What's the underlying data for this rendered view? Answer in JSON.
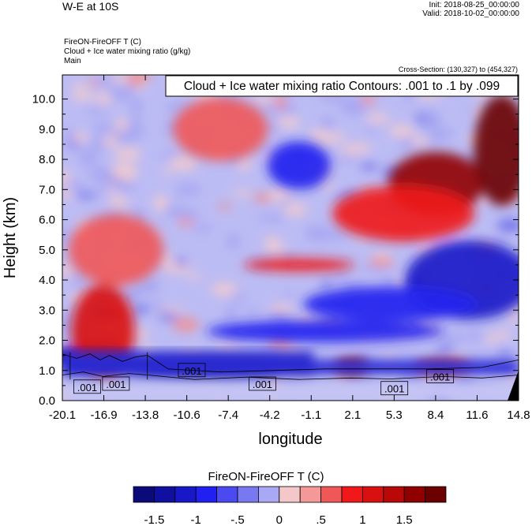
{
  "header": {
    "title": "W-E at 10S",
    "init": "Init: 2018-08-25_00:00:00",
    "valid": "Valid: 2018-10-02_00:00:00",
    "fill_label": "FireON-FireOFF T   (C)",
    "contour_label": "Cloud + Ice water mixing ratio   (g/kg)",
    "domain_label": "Main",
    "cross_section": "Cross-Section: (130,327) to (454,327)"
  },
  "chart_data": {
    "type": "heatmap",
    "xlabel": "longitude",
    "ylabel": "Height (km)",
    "x_ticks": [
      "-20.1",
      "-16.9",
      "-13.8",
      "-10.6",
      "-7.4",
      "-4.2",
      "-1.1",
      "2.1",
      "5.3",
      "8.4",
      "11.6",
      "14.8"
    ],
    "y_ticks": [
      "0.0",
      "1.0",
      "2.0",
      "3.0",
      "4.0",
      "5.0",
      "6.0",
      "7.0",
      "8.0",
      "9.0",
      "10.0"
    ],
    "xlim": [
      -20.1,
      14.8
    ],
    "ylim": [
      0.0,
      10.8
    ],
    "contour_annotation": "Cloud + Ice water mixing ratio Contours: .001 to .1 by .099",
    "contour_labels": [
      ".001",
      ".001",
      ".001",
      ".001",
      ".001",
      ".001"
    ],
    "colorbar": {
      "title": "FireON-FireOFF T  (C)",
      "labels": [
        "-1.5",
        "-1",
        "-.5",
        "0",
        ".5",
        "1",
        "1.5"
      ],
      "colors": [
        "#0a0a78",
        "#1010a0",
        "#1818c8",
        "#2020f0",
        "#4a4af0",
        "#7878f0",
        "#a8a8f4",
        "#f4c8c8",
        "#f49898",
        "#f05858",
        "#f01818",
        "#d81010",
        "#b80808",
        "#900000",
        "#6a0000"
      ]
    },
    "field_regions": [
      {
        "lon": 8.5,
        "h": 7.2,
        "value": 1.5
      },
      {
        "lon": 13.5,
        "h": 8.3,
        "value": 1.7
      },
      {
        "lon": 6.0,
        "h": 6.2,
        "value": 0.7
      },
      {
        "lon": 11.0,
        "h": 4.0,
        "value": -1.3
      },
      {
        "lon": 5.0,
        "h": 3.2,
        "value": -1.0
      },
      {
        "lon": 0.0,
        "h": 2.3,
        "value": -1.1
      },
      {
        "lon": -9.0,
        "h": 1.0,
        "value": -1.5
      },
      {
        "lon": -18.0,
        "h": 1.45,
        "value": -1.6
      },
      {
        "lon": -2.0,
        "h": 4.5,
        "value": 0.8
      },
      {
        "lon": -17.0,
        "h": 2.3,
        "value": 1.0
      },
      {
        "lon": 2.0,
        "h": 1.1,
        "value": 1.4
      },
      {
        "lon": 9.0,
        "h": 1.1,
        "value": 1.3
      },
      {
        "lon": -2.0,
        "h": 7.8,
        "value": -0.9
      },
      {
        "lon": -16.0,
        "h": 5.0,
        "value": 0.5
      },
      {
        "lon": -8.0,
        "h": 9.0,
        "value": 0.5
      }
    ]
  }
}
